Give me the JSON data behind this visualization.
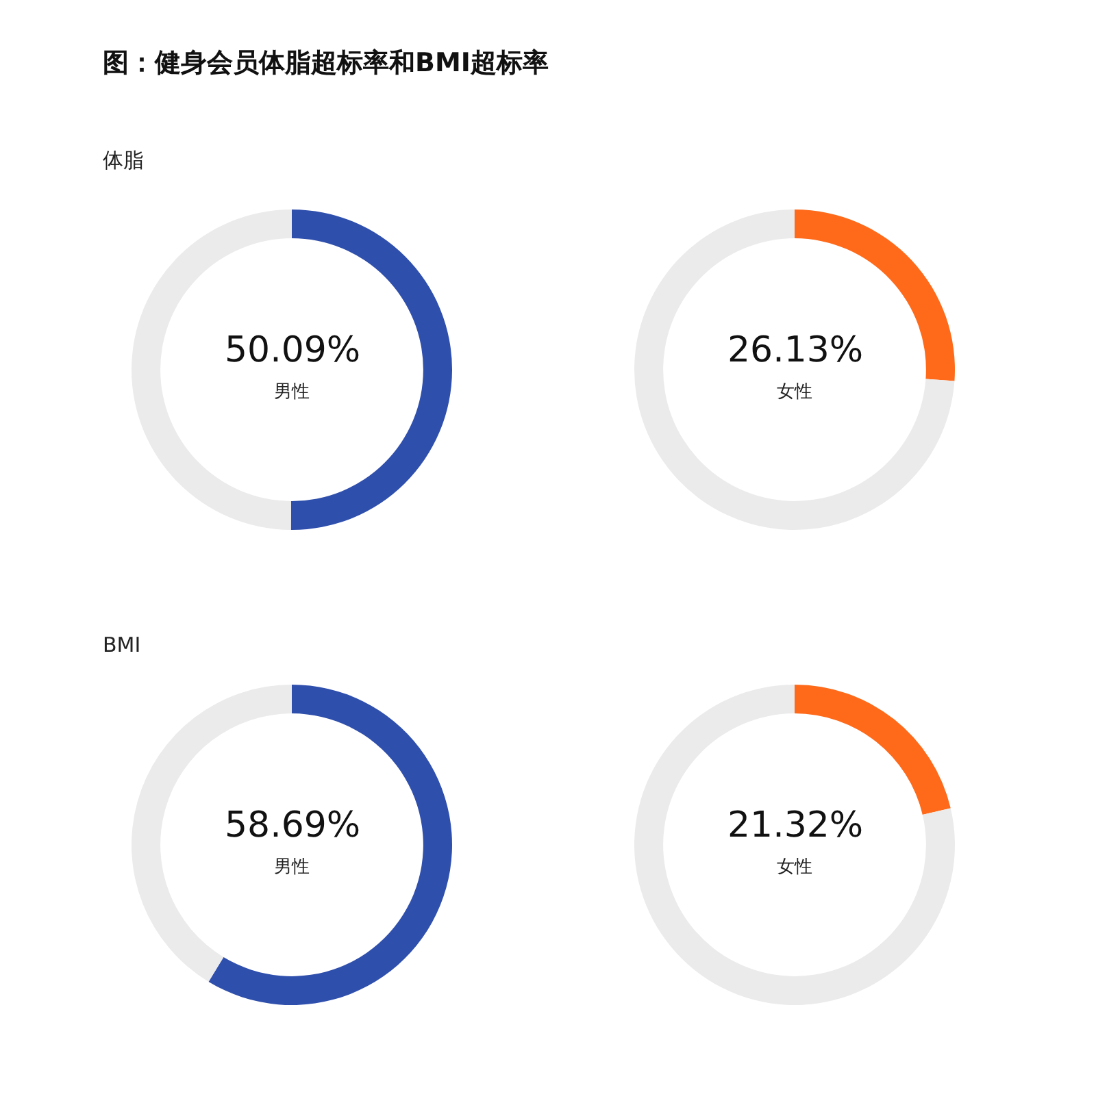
{
  "chart_data": [
    {
      "type": "donut",
      "title": "图：健身会员体脂超标率和BMI超标率",
      "subtitle": "体脂",
      "categories": [
        "男性",
        null
      ],
      "values": [
        50.09,
        49.91
      ],
      "colors": [
        "#2f4fad",
        "#ebebeb"
      ],
      "value_labels": [
        "50.09%",
        null
      ]
    },
    {
      "type": "donut",
      "categories": [
        "女性",
        null
      ],
      "values": [
        26.13,
        73.87
      ],
      "colors": [
        "#ff6a1a",
        "#ebebeb"
      ],
      "value_labels": [
        "26.13%",
        null
      ]
    },
    {
      "type": "donut",
      "subtitle": "BMI",
      "categories": [
        "男性",
        null
      ],
      "values": [
        58.69,
        41.31
      ],
      "colors": [
        "#2f4fad",
        "#ebebeb"
      ],
      "value_labels": [
        "58.69%",
        null
      ]
    },
    {
      "type": "donut",
      "categories": [
        "女性",
        null
      ],
      "values": [
        21.32,
        78.68
      ],
      "colors": [
        "#ff6a1a",
        "#ebebeb"
      ],
      "value_labels": [
        "21.32%",
        null
      ]
    }
  ]
}
